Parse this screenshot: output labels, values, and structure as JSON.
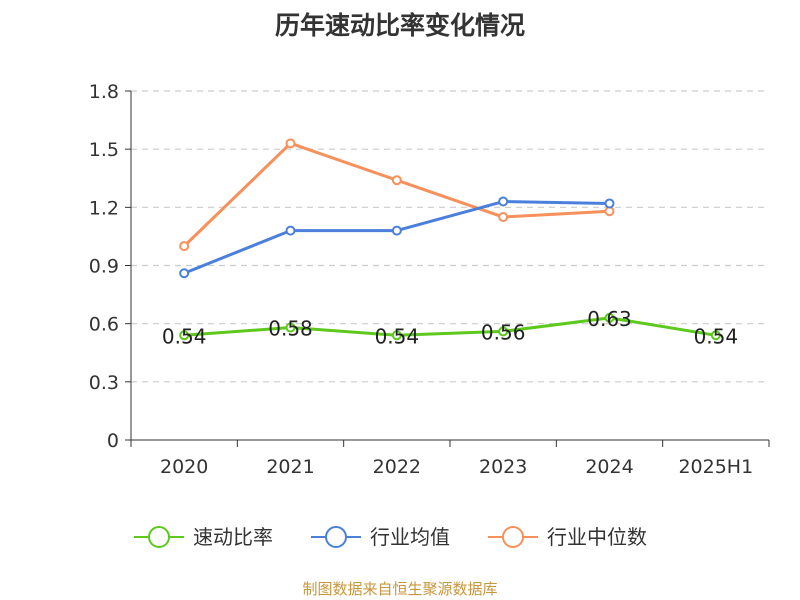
{
  "chart_data": {
    "type": "line",
    "title": "历年速动比率变化情况",
    "categories": [
      "2020",
      "2021",
      "2022",
      "2023",
      "2024",
      "2025H1"
    ],
    "yticks": [
      "0",
      "0.3",
      "0.6",
      "0.9",
      "1.2",
      "1.5",
      "1.8"
    ],
    "ylim": [
      0,
      1.8
    ],
    "grid": true,
    "legend_position": "bottom",
    "series": [
      {
        "name": "速动比率",
        "color": "#5cc91c",
        "values": [
          0.54,
          0.58,
          0.54,
          0.56,
          0.63,
          0.54
        ],
        "labels": [
          "0.54",
          "0.58",
          "0.54",
          "0.56",
          "0.63",
          "0.54"
        ]
      },
      {
        "name": "行业均值",
        "color": "#4a7fdc",
        "values": [
          0.86,
          1.08,
          1.08,
          1.23,
          1.22,
          null
        ]
      },
      {
        "name": "行业中位数",
        "color": "#f7905a",
        "values": [
          1.0,
          1.53,
          1.34,
          1.15,
          1.18,
          null
        ]
      }
    ]
  },
  "footer": {
    "source": "制图数据来自恒生聚源数据库"
  }
}
